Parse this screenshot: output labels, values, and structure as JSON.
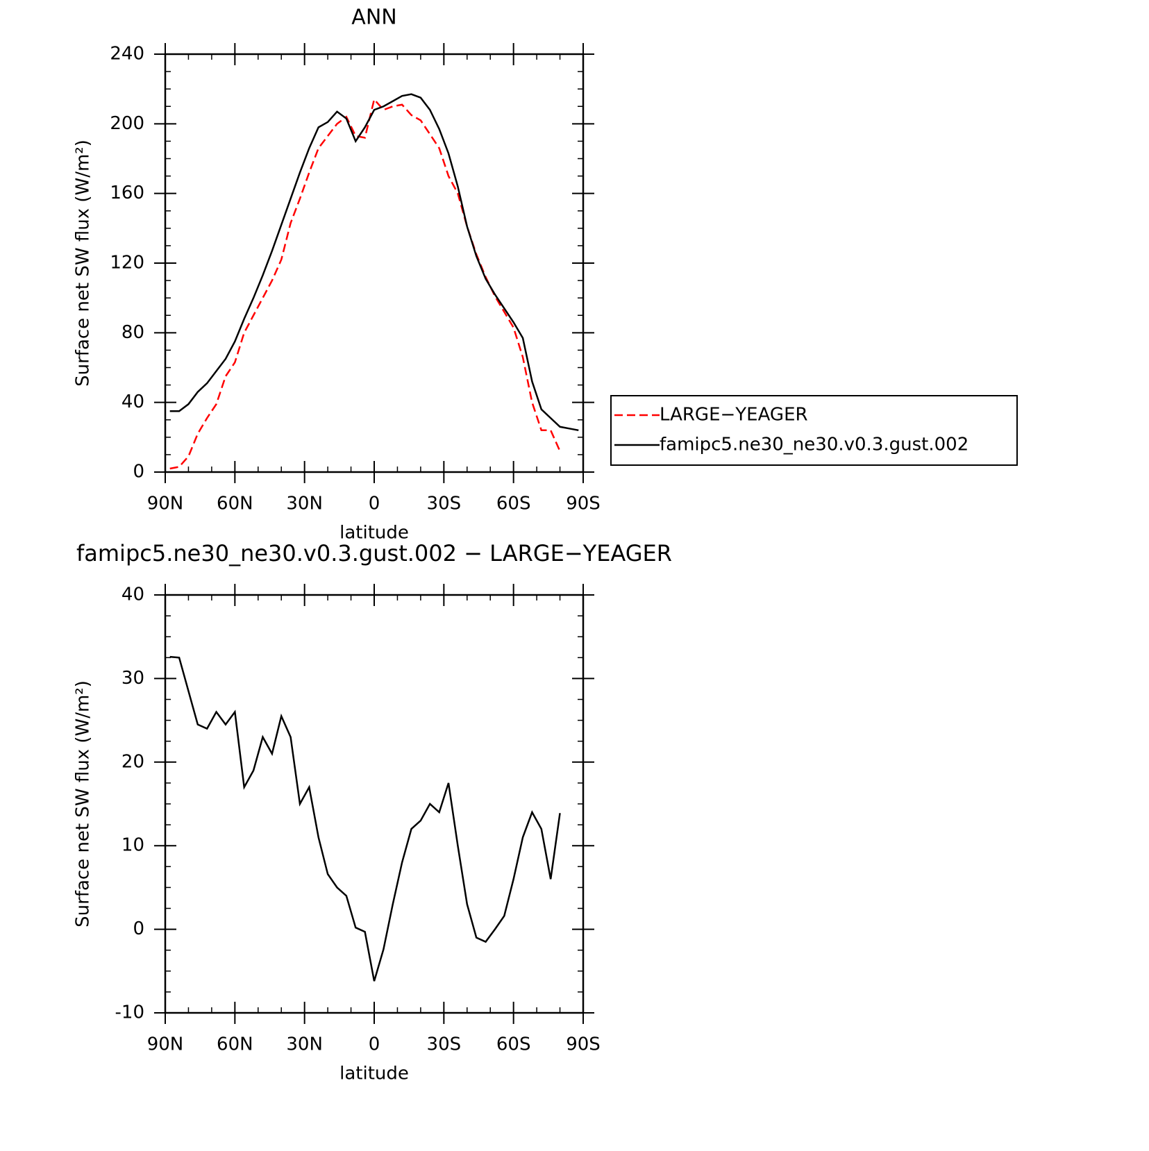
{
  "chart_data": [
    {
      "type": "line",
      "title": "ANN",
      "x_label": "latitude",
      "y_label": "Surface net SW flux (W/m²)",
      "x": [
        88,
        84,
        80,
        76,
        72,
        68,
        64,
        60,
        56,
        52,
        48,
        44,
        40,
        36,
        32,
        28,
        24,
        20,
        16,
        12,
        8,
        4,
        0,
        -4,
        -8,
        -12,
        -16,
        -20,
        -24,
        -28,
        -32,
        -36,
        -40,
        -44,
        -48,
        -52,
        -56,
        -60,
        -64,
        -68,
        -72,
        -76,
        -80,
        -84,
        -88
      ],
      "series": [
        {
          "name": "LARGE−YEAGER",
          "color": "#ff0000",
          "dash": true,
          "values": [
            2,
            3,
            9,
            22,
            31,
            39,
            55,
            63,
            80,
            90,
            100,
            110,
            122,
            143,
            157,
            172,
            186,
            193,
            200,
            204,
            193,
            192,
            214,
            208,
            210,
            211,
            205,
            202,
            194,
            186,
            170,
            160,
            141,
            125,
            112,
            101,
            92,
            83,
            66,
            40,
            24,
            24,
            12,
            null,
            null
          ]
        },
        {
          "name": "famipc5.ne30_ne30.v0.3.gust.002",
          "color": "#000000",
          "dash": false,
          "values": [
            35,
            35,
            39,
            46,
            51,
            58,
            65,
            75,
            88,
            100,
            113,
            127,
            142,
            157,
            172,
            186,
            198,
            201,
            207,
            203,
            190,
            198,
            208,
            210,
            213,
            216,
            217,
            215,
            208,
            197,
            183,
            164,
            141,
            124,
            111,
            102,
            94,
            86,
            77,
            52,
            36,
            31,
            26,
            25,
            24
          ]
        }
      ],
      "xlim": [
        90,
        -90
      ],
      "xticks": [
        {
          "value": 90,
          "label": "90N"
        },
        {
          "value": 60,
          "label": "60N"
        },
        {
          "value": 30,
          "label": "30N"
        },
        0,
        {
          "value": -30,
          "label": "30S"
        },
        {
          "value": -60,
          "label": "60S"
        },
        {
          "value": -90,
          "label": "90S"
        }
      ],
      "ylim": [
        0,
        240
      ],
      "yticks": [
        0,
        40,
        80,
        120,
        160,
        200,
        240
      ],
      "legend": "right"
    },
    {
      "type": "line",
      "title": "famipc5.ne30_ne30.v0.3.gust.002 − LARGE−YEAGER",
      "x_label": "latitude",
      "y_label": "Surface net SW flux (W/m²)",
      "x": [
        88,
        84,
        80,
        76,
        72,
        68,
        64,
        60,
        56,
        52,
        48,
        44,
        40,
        36,
        32,
        28,
        24,
        20,
        16,
        12,
        8,
        4,
        0,
        -4,
        -8,
        -12,
        -16,
        -20,
        -24,
        -28,
        -32,
        -36,
        -40,
        -44,
        -48,
        -52,
        -56,
        -60,
        -64,
        -68,
        -72,
        -76,
        -80,
        -84,
        -88
      ],
      "values": [
        32.6,
        32.5,
        28.5,
        24.5,
        24,
        26,
        24.5,
        26,
        17,
        19,
        23,
        21,
        25.5,
        23,
        15,
        17,
        11,
        6.6,
        5,
        4,
        0.2,
        -0.3,
        -6.2,
        -2.4,
        3,
        8,
        12,
        13,
        15,
        14,
        17.5,
        10,
        3,
        -1,
        -1.5,
        0,
        1.6,
        6,
        11,
        14,
        12,
        6,
        13.9,
        null,
        null
      ],
      "color": "#000000",
      "xlim": [
        90,
        -90
      ],
      "xticks": [
        {
          "value": 90,
          "label": "90N"
        },
        {
          "value": 60,
          "label": "60N"
        },
        {
          "value": 30,
          "label": "30N"
        },
        0,
        {
          "value": -30,
          "label": "30S"
        },
        {
          "value": -60,
          "label": "60S"
        },
        {
          "value": -90,
          "label": "90S"
        }
      ],
      "ylim": [
        -10,
        40
      ],
      "yticks": [
        -10,
        0,
        10,
        20,
        30,
        40
      ]
    }
  ]
}
